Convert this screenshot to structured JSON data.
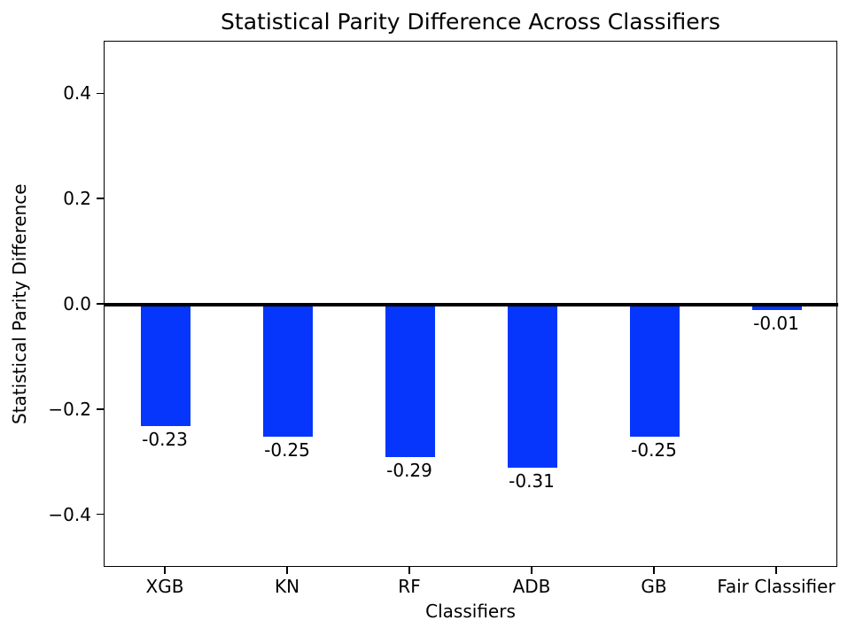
{
  "chart_data": {
    "type": "bar",
    "title": "Statistical Parity Difference Across Classifiers",
    "xlabel": "Classifiers",
    "ylabel": "Statistical Parity Difference",
    "categories": [
      "XGB",
      "KN",
      "RF",
      "ADB",
      "GB",
      "Fair Classifier"
    ],
    "values": [
      -0.23,
      -0.25,
      -0.29,
      -0.31,
      -0.25,
      -0.01
    ],
    "bar_value_labels": [
      "-0.23",
      "-0.25",
      "-0.29",
      "-0.31",
      "-0.25",
      "-0.01"
    ],
    "ylim": [
      -0.5,
      0.5
    ],
    "yticks": [
      0.4,
      0.2,
      0.0,
      -0.2,
      -0.4
    ],
    "ytick_labels": [
      "0.4",
      "0.2",
      "0.0",
      "−0.2",
      "−0.4"
    ],
    "grid": false,
    "legend": null,
    "bar_color": "#0636fb",
    "zero_line_color": "#000000",
    "axis_color": "#000000",
    "background_color": "#ffffff",
    "bar_width_fraction": 0.4
  }
}
